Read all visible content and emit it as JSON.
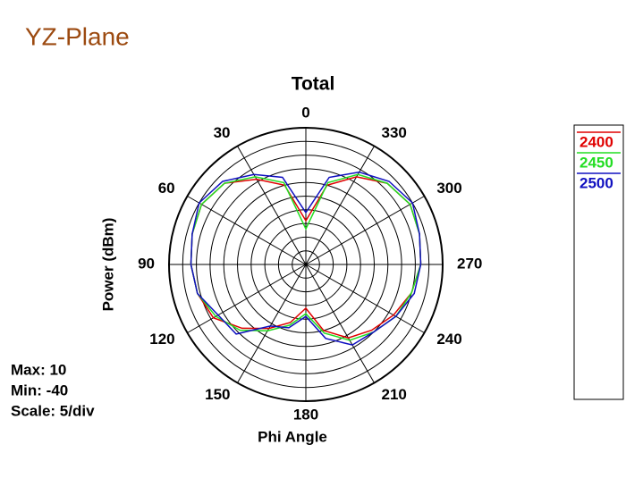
{
  "page_title": "YZ-Plane",
  "chart_data": {
    "type": "polar",
    "title": "Total",
    "x_label": "Phi Angle",
    "y_label": "Power  (dBm)",
    "x": [
      0,
      15,
      30,
      45,
      60,
      75,
      90,
      105,
      120,
      135,
      150,
      165,
      180,
      195,
      210,
      225,
      240,
      255,
      270,
      285,
      300,
      315,
      330,
      345
    ],
    "xticks": [
      0,
      30,
      60,
      90,
      120,
      150,
      180,
      210,
      240,
      270,
      300,
      330
    ],
    "ylim": [
      -40,
      10
    ],
    "yticks": [
      -40,
      -35,
      -30,
      -25,
      -20,
      -15,
      -10,
      -5,
      0,
      5,
      10
    ],
    "stats": [
      "Max: 10",
      "Min: -40",
      "Scale: 5/div"
    ],
    "series": [
      {
        "name": "2400",
        "color": "#e00000",
        "values": [
          -24,
          -10,
          -4,
          2,
          4,
          3,
          2,
          1,
          -1,
          -7,
          -13,
          -18,
          -24,
          -15,
          -9,
          -6,
          -3,
          0,
          2,
          3,
          4,
          2,
          -3,
          -10
        ]
      },
      {
        "name": "2450",
        "color": "#22dd22",
        "values": [
          -27,
          -9,
          -3,
          2,
          4,
          3,
          2,
          1,
          -2,
          -6,
          -12,
          -17,
          -22,
          -14,
          -8,
          -5,
          -2,
          0,
          2,
          3,
          4,
          2,
          -2,
          -9
        ]
      },
      {
        "name": "2500",
        "color": "#1010c0",
        "values": [
          -21,
          -7,
          -2,
          3,
          5,
          3,
          2,
          1,
          -3,
          -4,
          -14,
          -16,
          -21,
          -12,
          -6,
          -5,
          -2,
          1,
          2,
          3,
          5,
          3,
          -1,
          -7
        ]
      }
    ]
  }
}
